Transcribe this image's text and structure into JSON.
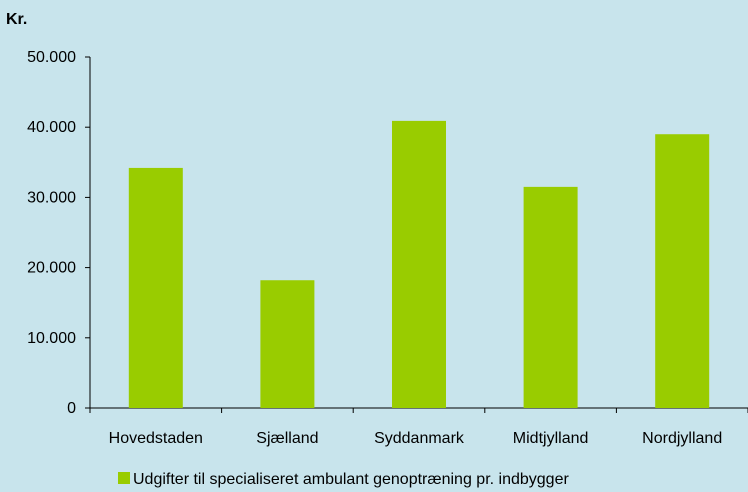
{
  "chart_data": {
    "type": "bar",
    "unit_label": "Kr.",
    "categories": [
      "Hovedstaden",
      "Sjælland",
      "Syddanmark",
      "Midtjylland",
      "Nordjylland"
    ],
    "series": [
      {
        "name": "Udgifter til specialiseret ambulant genoptræning pr. indbygger",
        "values": [
          34200,
          18200,
          40900,
          31500,
          39000
        ]
      }
    ],
    "ylim": [
      0,
      50000
    ],
    "yticks": [
      {
        "value": 0,
        "label": "0"
      },
      {
        "value": 10000,
        "label": "10.000"
      },
      {
        "value": 20000,
        "label": "20.000"
      },
      {
        "value": 30000,
        "label": "30.000"
      },
      {
        "value": 40000,
        "label": "40.000"
      },
      {
        "value": 50000,
        "label": "50.000"
      }
    ],
    "grid": false,
    "legend_position": "bottom",
    "colors": {
      "background": "#c8e4ec",
      "bar": "#99cc00",
      "axis": "#000000"
    }
  }
}
